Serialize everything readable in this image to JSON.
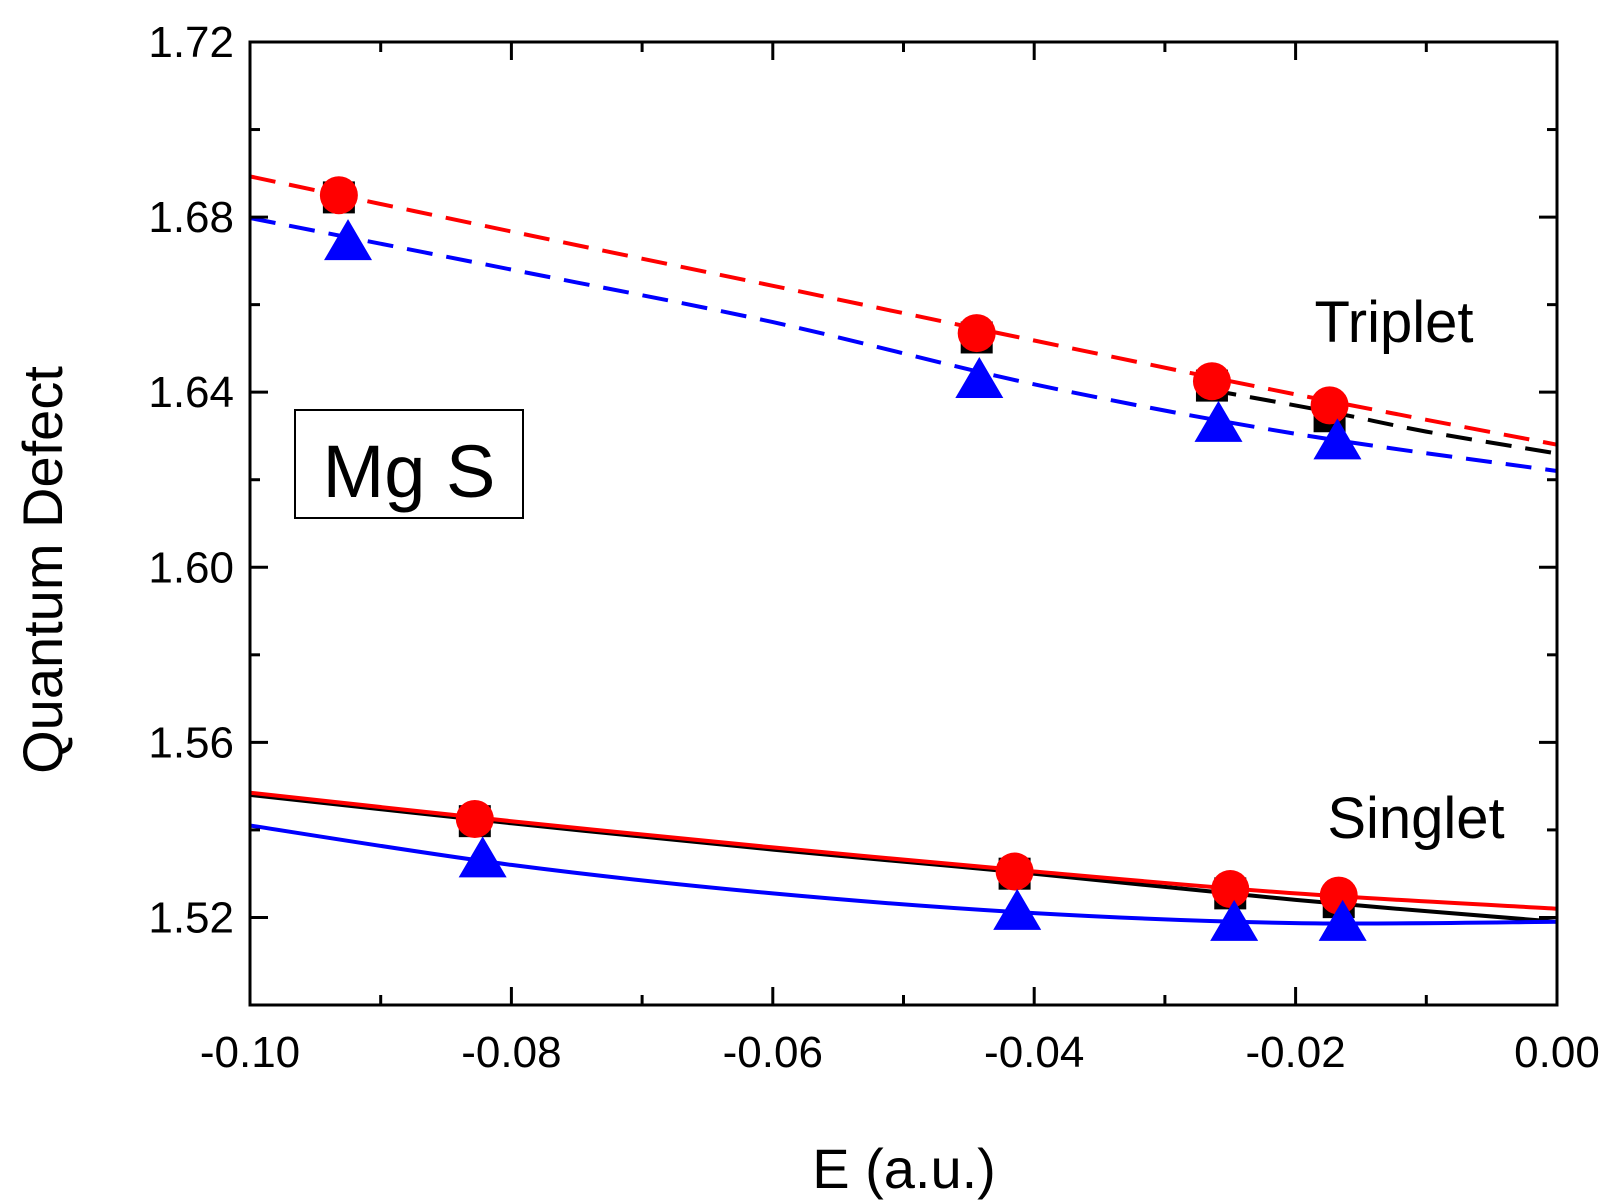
{
  "chart_data": {
    "type": "scatter",
    "xlabel": "E (a.u.)",
    "ylabel": "Quantum Defect",
    "xlim": [
      -0.1,
      0.0
    ],
    "ylim": [
      1.5,
      1.72
    ],
    "x_ticks": [
      -0.1,
      -0.08,
      -0.06,
      -0.04,
      -0.02,
      0.0
    ],
    "x_tick_labels": [
      "-0.10",
      "-0.08",
      "-0.06",
      "-0.04",
      "-0.02",
      "0.00"
    ],
    "y_ticks": [
      1.52,
      1.56,
      1.6,
      1.64,
      1.68,
      1.72
    ],
    "y_tick_labels": [
      "1.52",
      "1.56",
      "1.60",
      "1.64",
      "1.68",
      "1.72"
    ],
    "grid": false,
    "annotations": {
      "box_label": "Mg S",
      "triplet": "Triplet",
      "singlet": "Singlet"
    },
    "series": [
      {
        "group": "triplet",
        "marker": "square",
        "color": "#000000",
        "points": [
          [
            -0.0932,
            1.6845
          ],
          [
            -0.0444,
            1.6525
          ],
          [
            -0.0264,
            1.6415
          ],
          [
            -0.0174,
            1.6345
          ]
        ]
      },
      {
        "group": "triplet",
        "marker": "circle",
        "color": "#ff0000",
        "points": [
          [
            -0.0932,
            1.685
          ],
          [
            -0.0444,
            1.6535
          ],
          [
            -0.0264,
            1.6425
          ],
          [
            -0.0174,
            1.637
          ]
        ]
      },
      {
        "group": "triplet",
        "marker": "triangle",
        "color": "#0000ff",
        "points": [
          [
            -0.0925,
            1.6745
          ],
          [
            -0.0442,
            1.643
          ],
          [
            -0.0259,
            1.633
          ],
          [
            -0.0168,
            1.629
          ]
        ]
      },
      {
        "group": "triplet",
        "line": "dashed",
        "color": "#000000",
        "points": [
          [
            -0.0265,
            1.6405
          ],
          [
            -0.0174,
            1.6355
          ],
          [
            -0.01,
            1.631
          ],
          [
            0.0,
            1.626
          ]
        ]
      },
      {
        "group": "triplet",
        "line": "dashed",
        "color": "#ff0000",
        "points": [
          [
            -0.1,
            1.6893
          ],
          [
            -0.08,
            1.6767
          ],
          [
            -0.06,
            1.6643
          ],
          [
            -0.04,
            1.6518
          ],
          [
            -0.02,
            1.6395
          ],
          [
            0.0,
            1.628
          ]
        ]
      },
      {
        "group": "triplet",
        "line": "dashed",
        "color": "#0000ff",
        "points": [
          [
            -0.1,
            1.6798
          ],
          [
            -0.08,
            1.668
          ],
          [
            -0.06,
            1.656
          ],
          [
            -0.04,
            1.6418
          ],
          [
            -0.02,
            1.6305
          ],
          [
            0.0,
            1.622
          ]
        ]
      },
      {
        "group": "singlet",
        "marker": "square",
        "color": "#000000",
        "points": [
          [
            -0.0828,
            1.542
          ],
          [
            -0.0415,
            1.53
          ],
          [
            -0.025,
            1.5255
          ],
          [
            -0.0167,
            1.5235
          ]
        ]
      },
      {
        "group": "singlet",
        "marker": "circle",
        "color": "#ff0000",
        "points": [
          [
            -0.0828,
            1.5425
          ],
          [
            -0.0415,
            1.5305
          ],
          [
            -0.025,
            1.5265
          ],
          [
            -0.0167,
            1.525
          ]
        ]
      },
      {
        "group": "singlet",
        "marker": "triangle",
        "color": "#0000ff",
        "points": [
          [
            -0.0822,
            1.5335
          ],
          [
            -0.0413,
            1.5215
          ],
          [
            -0.0247,
            1.519
          ],
          [
            -0.0164,
            1.519
          ]
        ]
      },
      {
        "group": "singlet",
        "line": "solid",
        "color": "#000000",
        "points": [
          [
            -0.1,
            1.548
          ],
          [
            -0.08,
            1.5415
          ],
          [
            -0.06,
            1.5355
          ],
          [
            -0.04,
            1.53
          ],
          [
            -0.02,
            1.524
          ],
          [
            0.0,
            1.519
          ]
        ]
      },
      {
        "group": "singlet",
        "line": "solid",
        "color": "#ff0000",
        "points": [
          [
            -0.1,
            1.5485
          ],
          [
            -0.08,
            1.542
          ],
          [
            -0.06,
            1.536
          ],
          [
            -0.04,
            1.5305
          ],
          [
            -0.02,
            1.5255
          ],
          [
            0.0,
            1.522
          ]
        ]
      },
      {
        "group": "singlet",
        "line": "solid",
        "color": "#0000ff",
        "points": [
          [
            -0.1,
            1.541
          ],
          [
            -0.08,
            1.532
          ],
          [
            -0.06,
            1.5255
          ],
          [
            -0.04,
            1.521
          ],
          [
            -0.02,
            1.5187
          ],
          [
            0.0,
            1.519
          ]
        ]
      }
    ]
  }
}
